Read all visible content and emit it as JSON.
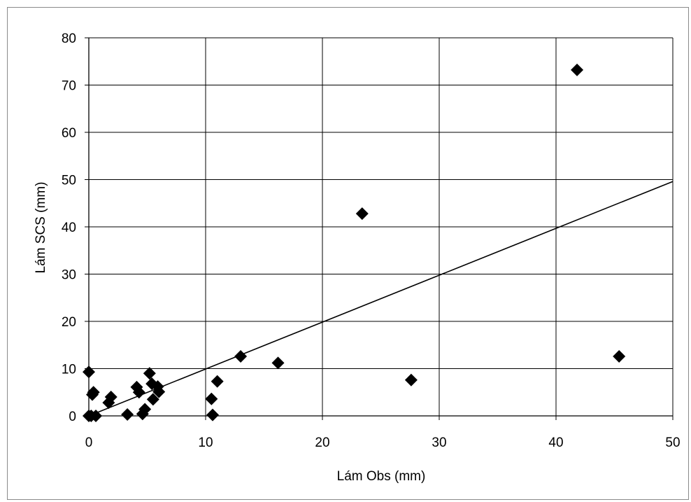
{
  "chart_data": {
    "type": "scatter",
    "title": "",
    "xlabel": "Lám Obs (mm)",
    "ylabel": "Lám SCS (mm)",
    "xlim": [
      0,
      50
    ],
    "ylim": [
      0,
      80
    ],
    "xticks": [
      0,
      10,
      20,
      30,
      40,
      50
    ],
    "yticks": [
      0,
      10,
      20,
      30,
      40,
      50,
      60,
      70,
      80
    ],
    "grid": true,
    "legend": "none",
    "marker": "diamond",
    "marker_color": "#000000",
    "points": [
      {
        "x": 0.0,
        "y": 9.3
      },
      {
        "x": 0.0,
        "y": 0.0
      },
      {
        "x": 0.2,
        "y": 0.0
      },
      {
        "x": 0.3,
        "y": 4.5
      },
      {
        "x": 0.4,
        "y": 5.0
      },
      {
        "x": 0.6,
        "y": 0.0
      },
      {
        "x": 1.7,
        "y": 2.8
      },
      {
        "x": 1.9,
        "y": 4.0
      },
      {
        "x": 3.3,
        "y": 0.3
      },
      {
        "x": 4.1,
        "y": 6.1
      },
      {
        "x": 4.3,
        "y": 5.0
      },
      {
        "x": 4.6,
        "y": 0.4
      },
      {
        "x": 4.8,
        "y": 1.4
      },
      {
        "x": 5.2,
        "y": 9.0
      },
      {
        "x": 5.4,
        "y": 6.8
      },
      {
        "x": 5.5,
        "y": 3.5
      },
      {
        "x": 5.9,
        "y": 6.2
      },
      {
        "x": 6.0,
        "y": 5.1
      },
      {
        "x": 10.5,
        "y": 3.6
      },
      {
        "x": 10.6,
        "y": 0.2
      },
      {
        "x": 11.0,
        "y": 7.3
      },
      {
        "x": 13.0,
        "y": 12.6
      },
      {
        "x": 16.2,
        "y": 11.2
      },
      {
        "x": 23.4,
        "y": 42.8
      },
      {
        "x": 27.6,
        "y": 7.6
      },
      {
        "x": 41.8,
        "y": 73.2
      },
      {
        "x": 45.4,
        "y": 12.6
      }
    ],
    "line": {
      "type": "trendline",
      "x": [
        0,
        50
      ],
      "y": [
        0,
        49.6
      ],
      "color": "#000000"
    }
  }
}
